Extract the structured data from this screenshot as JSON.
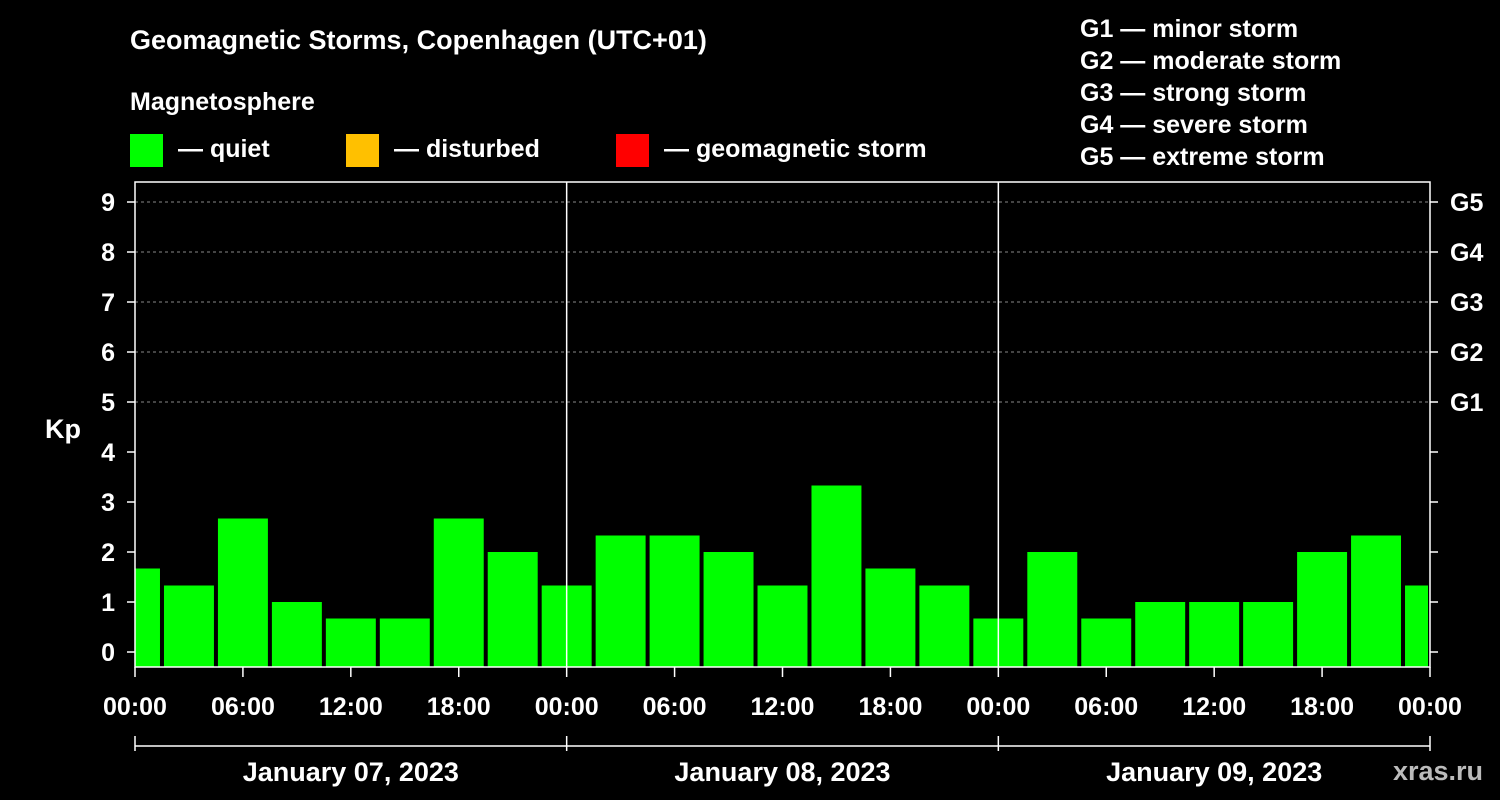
{
  "chart_data": {
    "type": "bar",
    "title": "Geomagnetic Storms, Copenhagen (UTC+01)",
    "legend_title": "Magnetosphere",
    "legend": [
      {
        "label": "— quiet",
        "color": "#00ff00"
      },
      {
        "label": "— disturbed",
        "color": "#ffc000"
      },
      {
        "label": "— geomagnetic storm",
        "color": "#ff0000"
      }
    ],
    "storm_scale": [
      "G1 — minor storm",
      "G2 — moderate storm",
      "G3 — strong storm",
      "G4 — severe storm",
      "G5 — extreme storm"
    ],
    "ylabel": "Kp",
    "ylim": [
      0,
      9
    ],
    "y_ticks": [
      "0",
      "1",
      "2",
      "3",
      "4",
      "5",
      "6",
      "7",
      "8",
      "9"
    ],
    "right_ticks": [
      {
        "value": 5,
        "label": "G1"
      },
      {
        "value": 6,
        "label": "G2"
      },
      {
        "value": 7,
        "label": "G3"
      },
      {
        "value": 8,
        "label": "G4"
      },
      {
        "value": 9,
        "label": "G5"
      }
    ],
    "grid": "dashed horizontal lines at Kp 5–9",
    "x_tick_labels": [
      "00:00",
      "06:00",
      "12:00",
      "18:00",
      "00:00",
      "06:00",
      "12:00",
      "18:00",
      "00:00",
      "06:00",
      "12:00",
      "18:00",
      "00:00"
    ],
    "days": [
      "January 07, 2023",
      "January 08, 2023",
      "January 09, 2023"
    ],
    "interval_hours": 3,
    "series": [
      {
        "values": [
          1.67,
          1.33,
          2.67,
          1.0,
          0.67,
          0.67,
          2.67,
          2.0,
          1.33,
          2.33,
          2.33,
          2.0,
          1.33,
          3.33,
          1.67,
          1.33,
          0.67,
          2.0,
          0.67,
          1.0,
          1.0,
          1.0,
          2.0,
          2.33,
          1.33
        ],
        "color": "#00ff00"
      }
    ],
    "watermark": "xras.ru"
  }
}
